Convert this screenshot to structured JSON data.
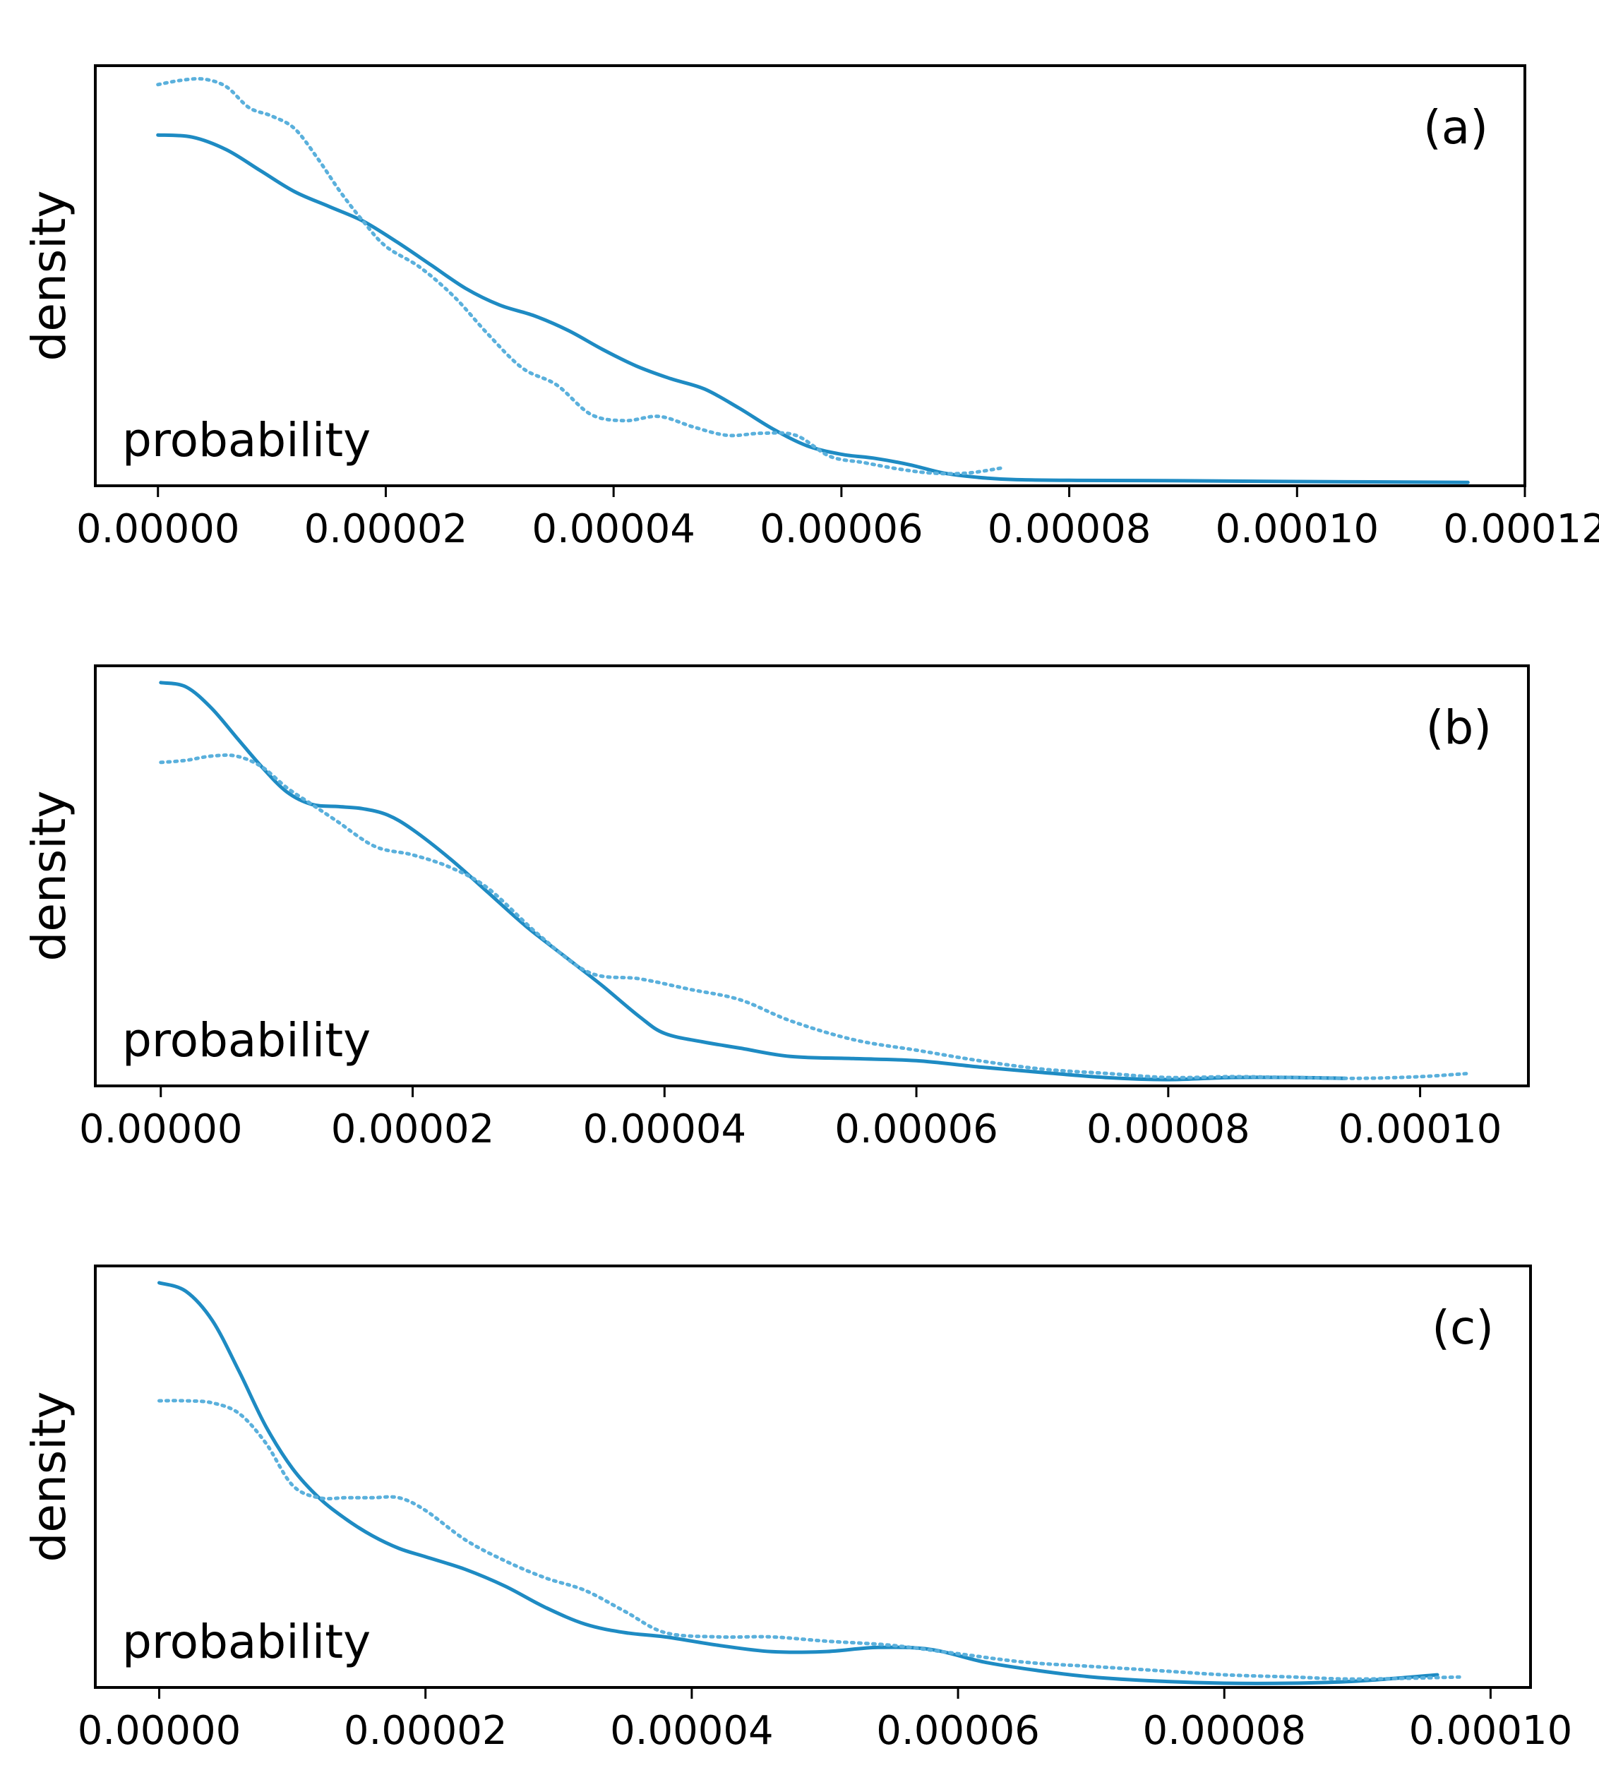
{
  "colors": {
    "solid": "#1e8bc3",
    "dotted": "#5ab0dc",
    "axis": "#000000"
  },
  "chart_data": [
    {
      "type": "line",
      "panel_label": "(a)",
      "ylabel": "density",
      "corner_text": "probability",
      "xlim": [
        -5.5e-06,
        0.00012
      ],
      "ylim": [
        0,
        1
      ],
      "xticks": [
        0,
        2e-05,
        4e-05,
        6e-05,
        8e-05,
        0.0001,
        0.00012
      ],
      "xtick_labels": [
        "0.00000",
        "0.00002",
        "0.00004",
        "0.00006",
        "0.00008",
        "0.00010",
        "0.00012"
      ],
      "series": [
        {
          "name": "solid",
          "style": "solid",
          "x": [
            0,
            3e-06,
            6e-06,
            9e-06,
            1.2e-05,
            1.5e-05,
            1.8e-05,
            2.1e-05,
            2.4e-05,
            2.7e-05,
            3e-05,
            3.3e-05,
            3.6e-05,
            3.9e-05,
            4.2e-05,
            4.5e-05,
            4.8e-05,
            5.1e-05,
            5.4e-05,
            5.7e-05,
            6e-05,
            6.3e-05,
            6.6e-05,
            6.9e-05,
            7.2e-05,
            7.5e-05,
            8e-05,
            9e-05,
            0.0001,
            0.000115
          ],
          "y": [
            0.835,
            0.83,
            0.8,
            0.75,
            0.7,
            0.665,
            0.63,
            0.58,
            0.525,
            0.47,
            0.43,
            0.405,
            0.37,
            0.325,
            0.285,
            0.255,
            0.23,
            0.185,
            0.135,
            0.095,
            0.075,
            0.065,
            0.05,
            0.03,
            0.02,
            0.015,
            0.013,
            0.012,
            0.01,
            0.008
          ]
        },
        {
          "name": "dotted",
          "style": "dotted",
          "x": [
            0,
            2e-06,
            4e-06,
            6e-06,
            8e-06,
            1e-05,
            1.2e-05,
            1.4e-05,
            1.6e-05,
            1.8e-05,
            2e-05,
            2.3e-05,
            2.6e-05,
            2.9e-05,
            3.2e-05,
            3.5e-05,
            3.8e-05,
            4.1e-05,
            4.4e-05,
            4.7e-05,
            5e-05,
            5.3e-05,
            5.6e-05,
            5.9e-05,
            6.2e-05,
            6.5e-05,
            6.8e-05,
            7.1e-05,
            7.4e-05
          ],
          "y": [
            0.955,
            0.965,
            0.968,
            0.95,
            0.9,
            0.88,
            0.85,
            0.78,
            0.7,
            0.63,
            0.57,
            0.52,
            0.45,
            0.36,
            0.28,
            0.24,
            0.17,
            0.155,
            0.165,
            0.14,
            0.12,
            0.125,
            0.12,
            0.07,
            0.055,
            0.04,
            0.03,
            0.03,
            0.042
          ]
        }
      ]
    },
    {
      "type": "line",
      "panel_label": "(b)",
      "ylabel": "density",
      "corner_text": "probability",
      "xlim": [
        -5.2e-06,
        0.0001086
      ],
      "ylim": [
        0,
        1
      ],
      "xticks": [
        0,
        2e-05,
        4e-05,
        6e-05,
        8e-05,
        0.0001
      ],
      "xtick_labels": [
        "0.00000",
        "0.00002",
        "0.00004",
        "0.00006",
        "0.00008",
        "0.00010"
      ],
      "series": [
        {
          "name": "solid",
          "style": "solid",
          "x": [
            0,
            2e-06,
            4e-06,
            6e-06,
            8e-06,
            1e-05,
            1.2e-05,
            1.4e-05,
            1.6e-05,
            1.8e-05,
            2e-05,
            2.3e-05,
            2.6e-05,
            2.9e-05,
            3.2e-05,
            3.5e-05,
            3.8e-05,
            4e-05,
            4.3e-05,
            4.6e-05,
            5e-05,
            5.5e-05,
            6e-05,
            6.5e-05,
            7e-05,
            7.5e-05,
            8e-05,
            8.5e-05,
            9e-05,
            9.4e-05
          ],
          "y": [
            0.96,
            0.95,
            0.9,
            0.83,
            0.76,
            0.7,
            0.67,
            0.665,
            0.66,
            0.645,
            0.61,
            0.54,
            0.46,
            0.38,
            0.31,
            0.24,
            0.165,
            0.125,
            0.105,
            0.09,
            0.07,
            0.065,
            0.06,
            0.045,
            0.032,
            0.02,
            0.015,
            0.02,
            0.02,
            0.018
          ]
        },
        {
          "name": "dotted",
          "style": "dotted",
          "x": [
            0,
            2e-06,
            4e-06,
            6e-06,
            8e-06,
            1e-05,
            1.2e-05,
            1.4e-05,
            1.7e-05,
            2e-05,
            2.3e-05,
            2.6e-05,
            3e-05,
            3.4e-05,
            3.8e-05,
            4.2e-05,
            4.6e-05,
            5e-05,
            5.5e-05,
            6e-05,
            6.5e-05,
            7e-05,
            7.5e-05,
            8e-05,
            8.5e-05,
            9e-05,
            9.5e-05,
            0.0001,
            0.000104
          ],
          "y": [
            0.77,
            0.775,
            0.785,
            0.785,
            0.76,
            0.71,
            0.67,
            0.63,
            0.57,
            0.55,
            0.52,
            0.47,
            0.36,
            0.27,
            0.255,
            0.23,
            0.205,
            0.155,
            0.11,
            0.085,
            0.06,
            0.04,
            0.03,
            0.02,
            0.022,
            0.02,
            0.018,
            0.022,
            0.03
          ]
        }
      ]
    },
    {
      "type": "line",
      "panel_label": "(c)",
      "ylabel": "density",
      "corner_text": "probability",
      "xlim": [
        -4.8e-06,
        0.000103
      ],
      "ylim": [
        0,
        1
      ],
      "xticks": [
        0,
        2e-05,
        4e-05,
        6e-05,
        8e-05,
        0.0001
      ],
      "xtick_labels": [
        "0.00000",
        "0.00002",
        "0.00004",
        "0.00006",
        "0.00008",
        "0.00010"
      ],
      "series": [
        {
          "name": "solid",
          "style": "solid",
          "x": [
            0,
            2e-06,
            4e-06,
            6e-06,
            8e-06,
            1e-05,
            1.2e-05,
            1.4e-05,
            1.6e-05,
            1.8e-05,
            2e-05,
            2.3e-05,
            2.6e-05,
            2.9e-05,
            3.2e-05,
            3.5e-05,
            3.8e-05,
            4.2e-05,
            4.6e-05,
            5e-05,
            5.4e-05,
            5.8e-05,
            6.2e-05,
            6.6e-05,
            7e-05,
            7.5e-05,
            8e-05,
            8.5e-05,
            9e-05,
            9.6e-05
          ],
          "y": [
            0.96,
            0.94,
            0.87,
            0.75,
            0.62,
            0.52,
            0.45,
            0.4,
            0.36,
            0.33,
            0.31,
            0.28,
            0.24,
            0.19,
            0.15,
            0.13,
            0.12,
            0.1,
            0.085,
            0.085,
            0.095,
            0.09,
            0.06,
            0.04,
            0.025,
            0.015,
            0.01,
            0.01,
            0.015,
            0.03
          ]
        },
        {
          "name": "dotted",
          "style": "dotted",
          "x": [
            0,
            2e-06,
            4e-06,
            6e-06,
            8e-06,
            1e-05,
            1.2e-05,
            1.4e-05,
            1.6e-05,
            1.8e-05,
            2e-05,
            2.3e-05,
            2.6e-05,
            2.9e-05,
            3.2e-05,
            3.5e-05,
            3.8e-05,
            4.2e-05,
            4.6e-05,
            5e-05,
            5.5e-05,
            6e-05,
            6.5e-05,
            7e-05,
            7.5e-05,
            8e-05,
            8.5e-05,
            9e-05,
            9.8e-05
          ],
          "y": [
            0.68,
            0.68,
            0.675,
            0.65,
            0.58,
            0.48,
            0.45,
            0.45,
            0.45,
            0.45,
            0.42,
            0.35,
            0.3,
            0.26,
            0.23,
            0.18,
            0.13,
            0.12,
            0.12,
            0.11,
            0.1,
            0.08,
            0.06,
            0.05,
            0.04,
            0.03,
            0.025,
            0.02,
            0.025
          ]
        }
      ]
    }
  ]
}
